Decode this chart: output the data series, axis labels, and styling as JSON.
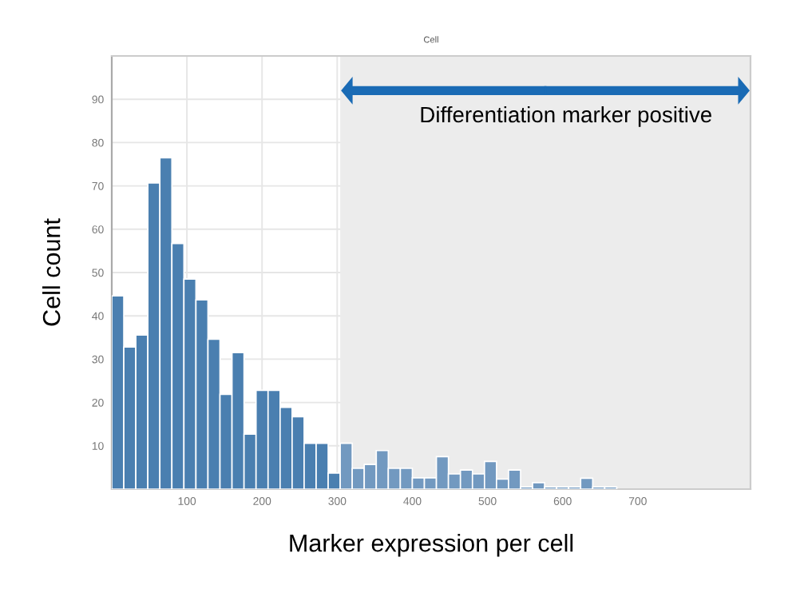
{
  "chart_data": {
    "type": "histogram",
    "title": "Cell",
    "xlabel": "Marker expression per cell",
    "ylabel": "Cell count",
    "bins": [
      0,
      16,
      32,
      48,
      64,
      80,
      96,
      112,
      128,
      144,
      160,
      176,
      192,
      208,
      224,
      240,
      256,
      272,
      288,
      304,
      320,
      336,
      352,
      368,
      384,
      400,
      416,
      432,
      448,
      464,
      480,
      496,
      512,
      528,
      544,
      560,
      576,
      592,
      608,
      624,
      640,
      656,
      672
    ],
    "values": [
      44.6,
      32.8,
      35.6,
      70.7,
      76.5,
      56.7,
      48.5,
      43.7,
      34.6,
      21.9,
      31.5,
      12.7,
      22.8,
      22.8,
      18.9,
      16.7,
      10.6,
      10.6,
      3.7,
      10.6,
      4.8,
      5.7,
      8.9,
      4.8,
      4.8,
      2.6,
      2.6,
      7.5,
      3.5,
      4.4,
      3.5,
      6.4,
      2.3,
      4.4,
      0.5,
      1.5,
      0.5,
      0.5,
      0.5,
      2.5,
      0.5,
      0.5
    ],
    "colors": [
      "#4a7fb0",
      "#4a7fb0",
      "#4a7fb0",
      "#4a7fb0",
      "#4a7fb0",
      "#4a7fb0",
      "#4a7fb0",
      "#4a7fb0",
      "#4a7fb0",
      "#4a7fb0",
      "#4a7fb0",
      "#4a7fb0",
      "#4a7fb0",
      "#4a7fb0",
      "#4a7fb0",
      "#4a7fb0",
      "#4a7fb0",
      "#4a7fb0",
      "#4a7fb0",
      "#7299c0",
      "#7299c0",
      "#7299c0",
      "#7299c0",
      "#7299c0",
      "#7299c0",
      "#7299c0",
      "#7299c0",
      "#7299c0",
      "#7299c0",
      "#7299c0",
      "#7299c0",
      "#7299c0",
      "#7299c0",
      "#7299c0",
      "#7299c0",
      "#7299c0",
      "#7299c0",
      "#7299c0",
      "#7299c0",
      "#7299c0",
      "#7299c0",
      "#7299c0"
    ],
    "xlim": [
      0,
      850
    ],
    "xticks": [
      100,
      200,
      300,
      400,
      500,
      600,
      700
    ],
    "ylim": [
      0,
      100
    ],
    "yticks": [
      10,
      20,
      30,
      40,
      50,
      60,
      70,
      80,
      90
    ],
    "bands": [
      {
        "axis": "x",
        "from": 304,
        "to": 850,
        "label": "Differentiation marker positive",
        "color": "#ececec"
      }
    ],
    "grid": true
  }
}
